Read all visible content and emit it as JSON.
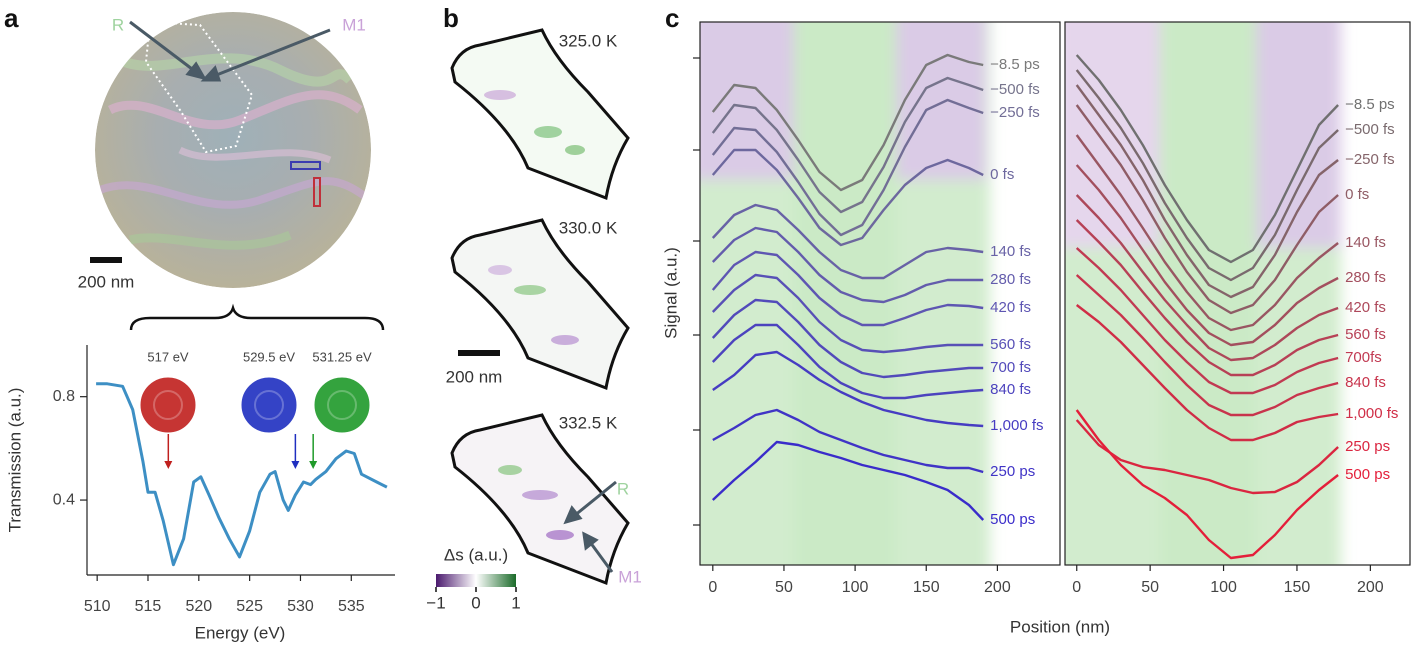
{
  "panel_labels": [
    "a",
    "b",
    "c"
  ],
  "panel_a": {
    "region_r": "R",
    "region_m1": "M1",
    "scale_bar": "200 nm"
  },
  "panel_b": {
    "temperatures": [
      "325.0 K",
      "330.0 K",
      "332.5 K"
    ],
    "scale_bar": "200 nm",
    "region_r": "R",
    "region_m1": "M1",
    "colorbar": {
      "label": "Δs (a.u.)",
      "lim": [
        -1,
        1
      ],
      "ticks": [
        {
          "value": -1,
          "label": "−1"
        },
        0,
        1
      ]
    }
  },
  "chart_data": [
    {
      "type": "line",
      "xlabel": "Energy (eV)",
      "ylabel": "Transmission (a.u.)",
      "color": "#3d8fc4",
      "x": [
        509.9,
        511,
        512.5,
        513.5,
        514.5,
        515,
        515.7,
        516.5,
        517.5,
        518.5,
        519.5,
        520.2,
        521,
        522,
        523,
        524,
        525,
        526,
        527,
        527.5,
        528.3,
        528.8,
        529.5,
        530.3,
        531,
        531.5,
        532.5,
        533.5,
        534.5,
        535.3,
        536,
        537.5,
        538.5
      ],
      "values": [
        0.85,
        0.85,
        0.84,
        0.75,
        0.55,
        0.43,
        0.43,
        0.32,
        0.15,
        0.25,
        0.47,
        0.49,
        0.42,
        0.33,
        0.25,
        0.18,
        0.28,
        0.43,
        0.5,
        0.51,
        0.4,
        0.36,
        0.42,
        0.47,
        0.46,
        0.48,
        0.51,
        0.56,
        0.59,
        0.58,
        0.5,
        0.47,
        0.45
      ],
      "xlim": [
        509,
        539.3
      ],
      "xticks": [
        510,
        515,
        520,
        525,
        530,
        535
      ],
      "ylim": [
        0.11,
        1.0
      ],
      "yticks": [
        0.4,
        0.8
      ],
      "annotations": [
        {
          "value": 517,
          "label": "517 eV",
          "color": "#c0201e"
        },
        {
          "value": 529.5,
          "label": "529.5 eV",
          "color": "#1f2fc0"
        },
        {
          "value": 531.25,
          "label": "531.25 eV",
          "color": "#1f9a2a"
        }
      ]
    },
    {
      "type": "line",
      "xlabel": "Position (nm)",
      "ylabel": "Signal (a.u.)",
      "x": [
        0,
        15,
        30,
        45,
        60,
        75,
        90,
        105,
        120,
        135,
        150,
        165,
        180,
        190
      ],
      "xlim": [
        -9,
        244
      ],
      "xticks": [
        0,
        50,
        100,
        150,
        200
      ],
      "ylim": [
        0,
        54.3
      ],
      "yticks": [
        4,
        13.5,
        23,
        32.4,
        41.5,
        50.7
      ],
      "ytick_labels": false,
      "series": [
        {
          "name": "−8.5 ps",
          "color": "#7a7a7a",
          "values": [
            45.3,
            48.0,
            47.7,
            45.5,
            42.5,
            39.3,
            37.5,
            38.5,
            42.0,
            46.5,
            50.0,
            51.0,
            50.3,
            50.0
          ]
        },
        {
          "name": "−500 fs",
          "color": "#76748c",
          "values": [
            43.2,
            46.0,
            45.7,
            43.5,
            40.5,
            37.3,
            35.3,
            36.3,
            39.8,
            44.3,
            47.7,
            48.7,
            48.0,
            47.5
          ]
        },
        {
          "name": "−250 fs",
          "color": "#726e96",
          "values": [
            41.0,
            43.7,
            43.5,
            41.3,
            38.3,
            35.1,
            33.0,
            34.0,
            37.5,
            41.8,
            45.5,
            46.5,
            45.7,
            45.2
          ]
        },
        {
          "name": "0 fs",
          "color": "#6d689e",
          "values": [
            39.0,
            41.5,
            41.5,
            39.5,
            36.7,
            33.7,
            32.0,
            32.7,
            35.5,
            38.0,
            39.7,
            40.5,
            39.7,
            39.0
          ]
        },
        {
          "name": "140 fs",
          "color": "#6862a6",
          "values": [
            32.7,
            35.0,
            36.0,
            35.5,
            33.5,
            31.3,
            29.5,
            28.7,
            28.7,
            30.0,
            31.3,
            31.7,
            31.5,
            31.3
          ]
        },
        {
          "name": "280 fs",
          "color": "#635cac",
          "values": [
            30.3,
            32.5,
            33.7,
            33.3,
            31.3,
            29.0,
            27.3,
            26.5,
            26.3,
            27.0,
            28.0,
            28.5,
            28.5,
            28.5
          ]
        },
        {
          "name": "420 fs",
          "color": "#5e56b2",
          "values": [
            27.5,
            30.0,
            31.3,
            31.0,
            29.0,
            26.7,
            25.0,
            24.0,
            24.0,
            24.7,
            25.5,
            26.0,
            25.9,
            25.7
          ]
        },
        {
          "name": "560 fs",
          "color": "#5850b6",
          "values": [
            25.3,
            27.5,
            29.0,
            28.7,
            26.7,
            24.3,
            22.5,
            21.5,
            21.3,
            21.5,
            21.8,
            22.0,
            22.0,
            22.0
          ]
        },
        {
          "name": "700 fs",
          "color": "#524aba",
          "values": [
            22.7,
            25.0,
            26.5,
            26.3,
            24.3,
            22.0,
            20.3,
            19.2,
            18.8,
            19.0,
            19.3,
            19.5,
            19.7,
            19.7
          ]
        },
        {
          "name": "840 fs",
          "color": "#4c43be",
          "values": [
            20.3,
            22.5,
            24.0,
            24.0,
            22.0,
            19.8,
            18.2,
            17.2,
            16.7,
            16.7,
            17.0,
            17.2,
            17.4,
            17.5
          ]
        },
        {
          "name": "1,000 fs",
          "color": "#463cc2",
          "values": [
            17.5,
            19.0,
            21.0,
            21.3,
            20.0,
            18.5,
            17.3,
            16.3,
            15.5,
            15.0,
            14.5,
            14.2,
            14.0,
            13.9
          ]
        },
        {
          "name": "250 ps",
          "color": "#4034c6",
          "values": [
            12.5,
            13.7,
            15.0,
            15.5,
            14.5,
            13.3,
            12.5,
            11.7,
            11.0,
            10.5,
            10.0,
            9.7,
            9.7,
            9.3
          ]
        },
        {
          "name": "500 ps",
          "color": "#3a2cca",
          "values": [
            6.5,
            8.5,
            10.3,
            12.3,
            12.0,
            11.3,
            10.7,
            10.0,
            9.5,
            9.0,
            8.3,
            7.5,
            6.0,
            4.5
          ]
        }
      ]
    },
    {
      "type": "line",
      "x": [
        0,
        15,
        30,
        45,
        60,
        75,
        90,
        105,
        120,
        135,
        150,
        165,
        178
      ],
      "xlim": [
        -8,
        227
      ],
      "xticks": [
        0,
        50,
        100,
        150,
        200
      ],
      "ylim": [
        0,
        54.3
      ],
      "series": [
        {
          "name": "−8.5 ps",
          "color": "#707070",
          "values": [
            51.0,
            48.5,
            45.5,
            42.0,
            38.0,
            34.5,
            31.5,
            30.3,
            31.5,
            35.0,
            39.5,
            44.0,
            46.0
          ]
        },
        {
          "name": "−500 fs",
          "color": "#7a6a6e",
          "values": [
            49.5,
            46.7,
            43.7,
            40.2,
            36.2,
            32.7,
            29.7,
            28.5,
            29.7,
            33.0,
            37.5,
            41.7,
            43.5
          ]
        },
        {
          "name": "−250 fs",
          "color": "#85646a",
          "values": [
            48.0,
            45.0,
            42.0,
            38.5,
            34.5,
            31.0,
            28.0,
            26.8,
            27.8,
            31.0,
            35.3,
            39.0,
            40.5
          ]
        },
        {
          "name": "0 fs",
          "color": "#8f5d66",
          "values": [
            46.0,
            43.0,
            40.0,
            36.5,
            32.7,
            29.3,
            26.5,
            25.2,
            26.0,
            28.5,
            32.0,
            35.3,
            37.0
          ]
        },
        {
          "name": "140 fs",
          "color": "#995662",
          "values": [
            43.0,
            40.0,
            37.0,
            33.7,
            30.3,
            27.3,
            24.7,
            23.5,
            24.0,
            26.0,
            28.7,
            30.7,
            32.2
          ]
        },
        {
          "name": "280 fs",
          "color": "#a34f5e",
          "values": [
            40.0,
            37.5,
            34.7,
            31.5,
            28.3,
            25.5,
            23.2,
            22.0,
            22.3,
            24.0,
            26.2,
            27.7,
            28.7
          ]
        },
        {
          "name": "420 fs",
          "color": "#ad485a",
          "values": [
            37.0,
            34.7,
            32.2,
            29.3,
            26.5,
            24.0,
            21.7,
            20.5,
            20.7,
            22.0,
            23.7,
            25.0,
            25.7
          ]
        },
        {
          "name": "560 fs",
          "color": "#b74156",
          "values": [
            34.5,
            32.3,
            30.0,
            27.3,
            24.7,
            22.3,
            20.3,
            19.0,
            19.0,
            20.0,
            21.5,
            22.5,
            23.0
          ]
        },
        {
          "name": "700fs",
          "color": "#c13a52",
          "values": [
            31.7,
            29.7,
            27.5,
            25.0,
            22.5,
            20.3,
            18.3,
            17.2,
            17.2,
            18.0,
            19.3,
            20.2,
            20.7
          ]
        },
        {
          "name": "840 fs",
          "color": "#c8344c",
          "values": [
            29.0,
            27.0,
            25.0,
            22.7,
            20.3,
            18.0,
            16.0,
            15.0,
            15.0,
            15.8,
            17.0,
            17.7,
            18.2
          ]
        },
        {
          "name": "1,000 fs",
          "color": "#d02d46",
          "values": [
            26.0,
            24.3,
            22.3,
            20.0,
            17.7,
            15.5,
            13.7,
            12.5,
            12.5,
            13.2,
            14.3,
            14.8,
            15.1
          ]
        },
        {
          "name": "250 ps",
          "color": "#da2640",
          "values": [
            14.5,
            12.0,
            10.5,
            9.8,
            9.5,
            9.0,
            8.5,
            7.7,
            7.2,
            7.3,
            8.3,
            10.0,
            11.8
          ]
        },
        {
          "name": "500 ps",
          "color": "#e41f3a",
          "values": [
            15.5,
            12.5,
            10.0,
            8.0,
            6.7,
            5.0,
            2.5,
            0.7,
            1.0,
            3.0,
            5.5,
            7.5,
            9.0
          ]
        }
      ]
    }
  ]
}
